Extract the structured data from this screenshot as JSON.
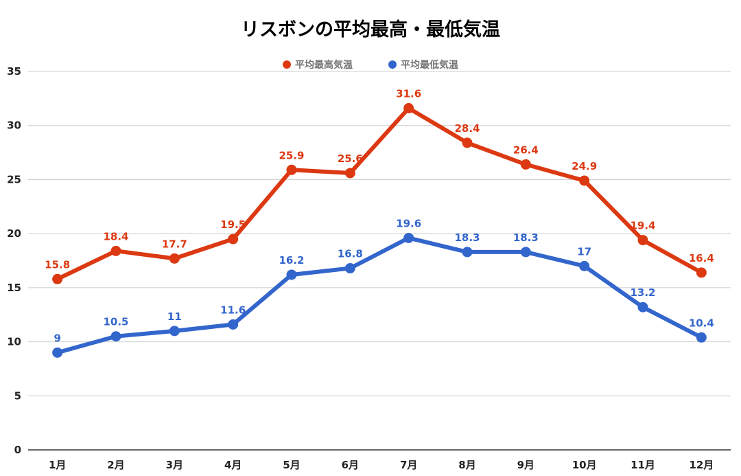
{
  "chart_data": {
    "type": "line",
    "title": "リスボンの平均最高・最低気温",
    "xlabel": "",
    "ylabel": "",
    "categories": [
      "1月",
      "2月",
      "3月",
      "4月",
      "5月",
      "6月",
      "7月",
      "8月",
      "9月",
      "10月",
      "11月",
      "12月"
    ],
    "ylim": [
      0,
      35
    ],
    "yticks": [
      0,
      5,
      10,
      15,
      20,
      25,
      30,
      35
    ],
    "grid": true,
    "legend_position": "top",
    "series": [
      {
        "name": "平均最高気温",
        "color": "#dc3912",
        "values": [
          15.8,
          18.4,
          17.7,
          19.5,
          25.9,
          25.6,
          31.6,
          28.4,
          26.4,
          24.9,
          19.4,
          16.4
        ],
        "labels": [
          "15.8",
          "18.4",
          "17.7",
          "19.5",
          "25.9",
          "25.6",
          "31.6",
          "28.4",
          "26.4",
          "24.9",
          "19.4",
          "16.4"
        ]
      },
      {
        "name": "平均最低気温",
        "color": "#3366cc",
        "values": [
          9,
          10.5,
          11,
          11.6,
          16.2,
          16.8,
          19.6,
          18.3,
          18.3,
          17,
          13.2,
          10.4
        ],
        "labels": [
          "9",
          "10.5",
          "11",
          "11.6",
          "16.2",
          "16.8",
          "19.6",
          "18.3",
          "18.3",
          "17",
          "13.2",
          "10.4"
        ]
      }
    ]
  }
}
